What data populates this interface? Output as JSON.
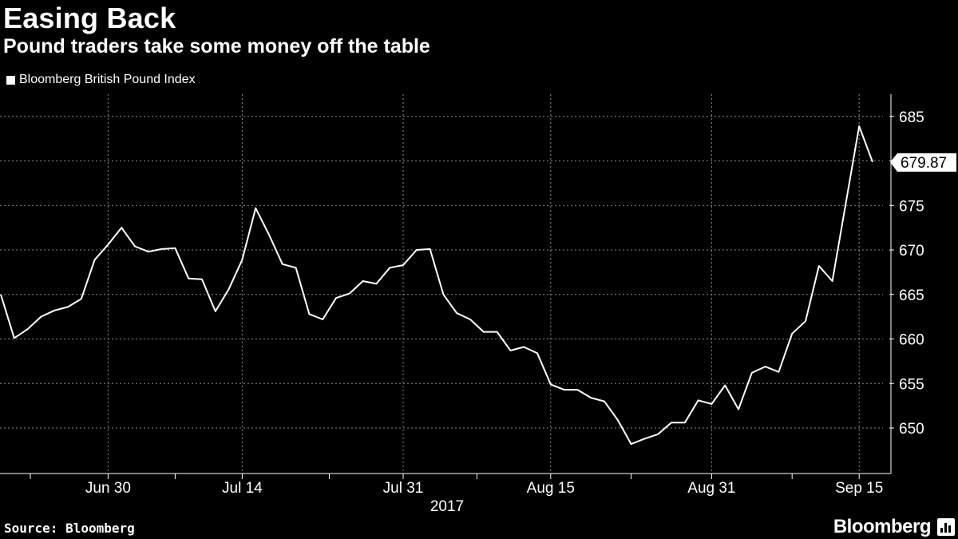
{
  "header": {
    "title": "Easing Back",
    "subtitle": "Pound traders take some money off the table"
  },
  "footer": {
    "source": "Source: Bloomberg",
    "brand": "Bloomberg"
  },
  "chart_data": {
    "type": "line",
    "title": "Easing Back",
    "subtitle": "Pound traders take some money off the table",
    "xlabel": "2017",
    "ylabel": "",
    "x_ticks": [
      {
        "label": "Jun 30",
        "index": 8
      },
      {
        "label": "Jul 14",
        "index": 18
      },
      {
        "label": "Jul 31",
        "index": 30
      },
      {
        "label": "Aug 15",
        "index": 41
      },
      {
        "label": "Aug 31",
        "index": 53
      },
      {
        "label": "Sep 15",
        "index": 64
      }
    ],
    "y_ticks": [
      650,
      655,
      660,
      665,
      670,
      675,
      680,
      685
    ],
    "ylim": [
      644,
      690
    ],
    "last_value_label": "679.87",
    "grid": true,
    "legend_position": "top-left",
    "series": [
      {
        "name": "Bloomberg British Pound Index",
        "color": "#ffffff",
        "values": [
          665.0,
          660.1,
          661.1,
          662.5,
          663.2,
          663.6,
          664.5,
          668.9,
          670.6,
          672.5,
          670.4,
          669.8,
          670.1,
          670.2,
          666.8,
          666.7,
          663.1,
          665.6,
          668.9,
          674.7,
          671.7,
          668.4,
          668.0,
          662.8,
          662.2,
          664.6,
          665.1,
          666.5,
          666.2,
          668.0,
          668.3,
          670.0,
          670.1,
          665.0,
          662.9,
          662.2,
          660.8,
          660.8,
          658.7,
          659.1,
          658.4,
          654.9,
          654.3,
          654.3,
          653.4,
          653.0,
          650.9,
          648.2,
          648.8,
          649.3,
          650.6,
          650.6,
          653.1,
          652.7,
          654.8,
          652.1,
          656.2,
          656.9,
          656.3,
          660.6,
          662.0,
          668.2,
          666.5,
          675.2,
          683.9,
          679.87
        ]
      }
    ]
  }
}
